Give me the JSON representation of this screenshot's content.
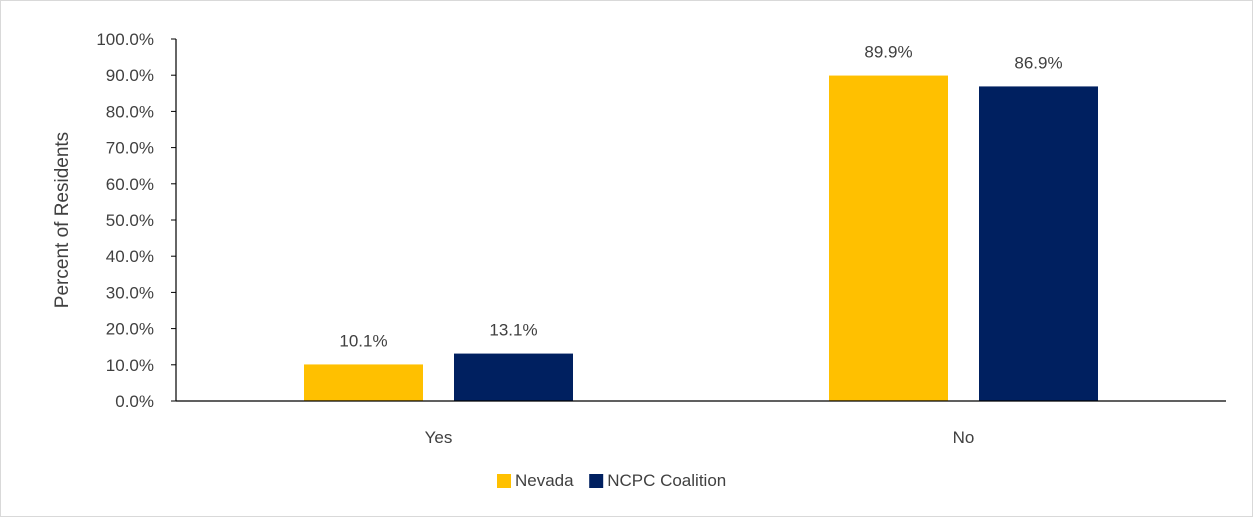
{
  "chart_data": {
    "type": "bar",
    "title": "",
    "xlabel": "",
    "ylabel": "Percent of Residents",
    "categories": [
      "Yes",
      "No"
    ],
    "series": [
      {
        "name": "Nevada",
        "values": [
          10.1,
          89.9
        ],
        "labels": [
          "10.1%",
          "89.9%"
        ],
        "color": "#FFC000"
      },
      {
        "name": "NCPC Coalition",
        "values": [
          13.1,
          86.9
        ],
        "labels": [
          "13.1%",
          "86.9%"
        ],
        "color": "#002060"
      }
    ],
    "ylim": [
      0,
      100
    ],
    "yticks": [
      0,
      10,
      20,
      30,
      40,
      50,
      60,
      70,
      80,
      90,
      100
    ],
    "ytick_labels": [
      "0.0%",
      "10.0%",
      "20.0%",
      "30.0%",
      "40.0%",
      "50.0%",
      "60.0%",
      "70.0%",
      "80.0%",
      "90.0%",
      "100.0%"
    ],
    "grid": false,
    "legend_position": "bottom",
    "axis_color": "#000000",
    "text_color": "#404040"
  }
}
